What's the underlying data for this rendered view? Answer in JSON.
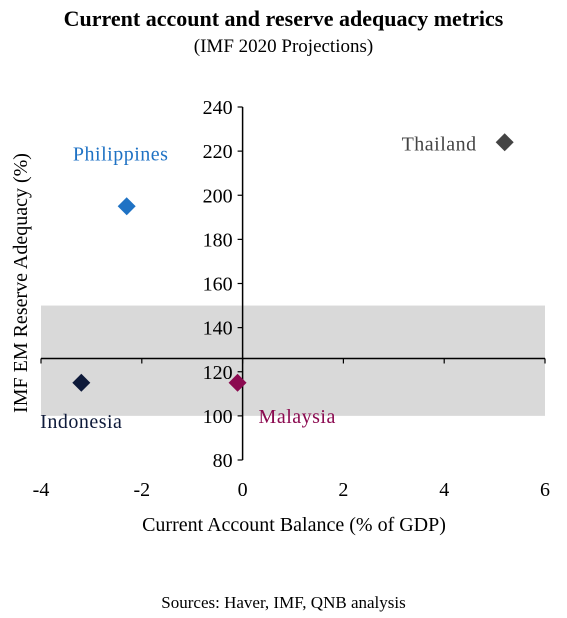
{
  "chart_data": {
    "type": "scatter",
    "title": "Current account and reserve adequacy metrics",
    "subtitle": "(IMF 2020 Projections)",
    "xlabel": "Current Account Balance (% of GDP)",
    "ylabel": "IMF EM Reserve Adequacy (%)",
    "xlim": [
      -4,
      6
    ],
    "ylim": [
      80,
      240
    ],
    "xticks": [
      -4,
      -2,
      0,
      2,
      4,
      6
    ],
    "yticks": [
      80,
      100,
      120,
      140,
      160,
      180,
      200,
      220,
      240
    ],
    "xtick_labels": [
      "-4",
      "-2",
      "0",
      "2",
      "4",
      "6"
    ],
    "ytick_labels": [
      "80",
      "100",
      "120",
      "140",
      "160",
      "180",
      "200",
      "220",
      "240"
    ],
    "x_axis_crosses_y": 126,
    "shaded_band": {
      "y_from": 100,
      "y_to": 150,
      "color": "#d9d9d9"
    },
    "points": [
      {
        "label": "Philippines",
        "x": -2.3,
        "y": 195,
        "color": "#1f72c4"
      },
      {
        "label": "Thailand",
        "x": 5.2,
        "y": 224,
        "color": "#444444"
      },
      {
        "label": "Indonesia",
        "x": -3.2,
        "y": 115,
        "color": "#0e1a3a"
      },
      {
        "label": "Malaysia",
        "x": -0.1,
        "y": 115,
        "color": "#8b0a50"
      }
    ],
    "grid": false,
    "legend": "none"
  },
  "footer": {
    "source": "Sources: Haver, IMF, QNB analysis"
  }
}
